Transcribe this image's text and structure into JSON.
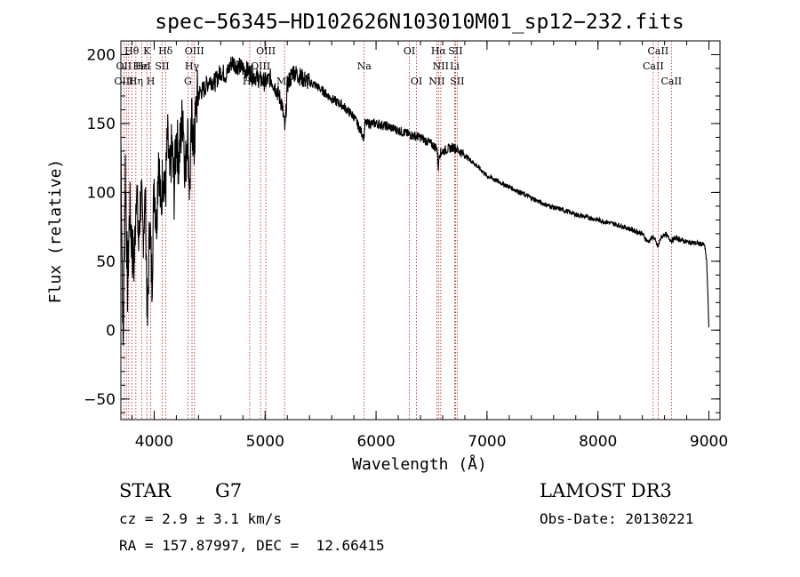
{
  "chart_data": {
    "type": "line",
    "title": "spec−56345−HD102626N103010M01_sp12−232.fits",
    "xlabel": "Wavelength (Å)",
    "ylabel": "Flux (relative)",
    "xlim": [
      3700,
      9100
    ],
    "ylim": [
      -65,
      210
    ],
    "xticks": [
      4000,
      5000,
      6000,
      7000,
      8000,
      9000
    ],
    "yticks": [
      -50,
      0,
      50,
      100,
      150,
      200
    ],
    "tick_labels_x": [
      "4000",
      "5000",
      "6000",
      "7000",
      "8000",
      "9000"
    ],
    "tick_labels_y": [
      "−50",
      "0",
      "50",
      "100",
      "150",
      "200"
    ],
    "grid": false,
    "series": [
      {
        "name": "spectrum",
        "x": [
          3700,
          3720,
          3740,
          3760,
          3780,
          3800,
          3820,
          3840,
          3860,
          3880,
          3900,
          3920,
          3940,
          3960,
          3980,
          4000,
          4020,
          4040,
          4060,
          4080,
          4100,
          4120,
          4140,
          4160,
          4180,
          4200,
          4220,
          4240,
          4260,
          4280,
          4300,
          4320,
          4340,
          4360,
          4380,
          4400,
          4450,
          4500,
          4550,
          4600,
          4650,
          4700,
          4750,
          4800,
          4850,
          4900,
          4950,
          5000,
          5050,
          5100,
          5150,
          5180,
          5200,
          5250,
          5300,
          5350,
          5400,
          5450,
          5500,
          5600,
          5700,
          5800,
          5890,
          5900,
          6000,
          6100,
          6200,
          6300,
          6400,
          6500,
          6550,
          6562,
          6570,
          6600,
          6700,
          6800,
          6900,
          7000,
          7100,
          7200,
          7300,
          7400,
          7500,
          7600,
          7700,
          7800,
          7900,
          8000,
          8100,
          8200,
          8300,
          8400,
          8450,
          8500,
          8542,
          8560,
          8600,
          8662,
          8700,
          8800,
          8900,
          8960,
          8980,
          9000
        ],
        "y": [
          140,
          -15,
          120,
          30,
          90,
          60,
          45,
          110,
          60,
          100,
          70,
          95,
          5,
          80,
          35,
          110,
          75,
          130,
          85,
          120,
          95,
          140,
          110,
          135,
          100,
          145,
          120,
          140,
          160,
          110,
          150,
          100,
          155,
          130,
          165,
          172,
          175,
          182,
          180,
          188,
          185,
          195,
          192,
          190,
          188,
          185,
          182,
          180,
          183,
          175,
          165,
          145,
          178,
          188,
          185,
          182,
          180,
          178,
          175,
          168,
          163,
          155,
          140,
          150,
          150,
          148,
          145,
          142,
          140,
          135,
          132,
          118,
          128,
          130,
          133,
          127,
          120,
          112,
          108,
          104,
          100,
          96,
          92,
          89,
          87,
          84,
          82,
          80,
          78,
          76,
          73,
          70,
          64,
          68,
          60,
          66,
          70,
          65,
          67,
          64,
          63,
          62,
          50,
          2
        ]
      }
    ],
    "line_labels": [
      {
        "text": "Hθ",
        "wl": 3798,
        "row": 0
      },
      {
        "text": "OII",
        "wl": 3727,
        "row": 1
      },
      {
        "text": "OIII",
        "wl": 3727,
        "row": 2
      },
      {
        "text": "K",
        "wl": 3934,
        "row": 0
      },
      {
        "text": "Hε",
        "wl": 3889,
        "row": 1
      },
      {
        "text": "HeI",
        "wl": 3889,
        "row": 1
      },
      {
        "text": "Hη",
        "wl": 3835,
        "row": 2
      },
      {
        "text": "H",
        "wl": 3969,
        "row": 2
      },
      {
        "text": "Hδ",
        "wl": 4102,
        "row": 0
      },
      {
        "text": "SII",
        "wl": 4072,
        "row": 1
      },
      {
        "text": "OIII",
        "wl": 4363,
        "row": 0
      },
      {
        "text": "Hγ",
        "wl": 4341,
        "row": 1
      },
      {
        "text": "G",
        "wl": 4304,
        "row": 2
      },
      {
        "text": "OIII",
        "wl": 5007,
        "row": 0
      },
      {
        "text": "OIII",
        "wl": 4959,
        "row": 1
      },
      {
        "text": "Hβ",
        "wl": 4861,
        "row": 2
      },
      {
        "text": "Mg",
        "wl": 5175,
        "row": 2
      },
      {
        "text": "Na",
        "wl": 5893,
        "row": 1
      },
      {
        "text": "OI",
        "wl": 6300,
        "row": 0
      },
      {
        "text": "OI",
        "wl": 6364,
        "row": 2
      },
      {
        "text": "Hα",
        "wl": 6563,
        "row": 0
      },
      {
        "text": "SII",
        "wl": 6716,
        "row": 0
      },
      {
        "text": "NII",
        "wl": 6583,
        "row": 1
      },
      {
        "text": "Li",
        "wl": 6708,
        "row": 1
      },
      {
        "text": "NII",
        "wl": 6548,
        "row": 2
      },
      {
        "text": "SII",
        "wl": 6731,
        "row": 2
      },
      {
        "text": "CaII",
        "wl": 8542,
        "row": 0
      },
      {
        "text": "CaII",
        "wl": 8498,
        "row": 1
      },
      {
        "text": "CaII",
        "wl": 8662,
        "row": 2
      }
    ],
    "marker_lines": [
      3727,
      3750,
      3771,
      3798,
      3835,
      3889,
      3934,
      3969,
      4072,
      4102,
      4304,
      4341,
      4363,
      4861,
      4959,
      5007,
      5175,
      5893,
      6300,
      6364,
      6548,
      6563,
      6583,
      6708,
      6716,
      6731,
      8498,
      8542,
      8662
    ]
  },
  "info": {
    "object_type": "STAR",
    "subclass": "G7",
    "survey": "LAMOST DR3",
    "cz": "cz = 2.9 ± 3.1 km/s",
    "obs_date": "Obs-Date: 20130221",
    "coords": "RA = 157.87997, DEC =  12.66415"
  },
  "colors": {
    "marker": "#b22222",
    "line": "#000000"
  }
}
